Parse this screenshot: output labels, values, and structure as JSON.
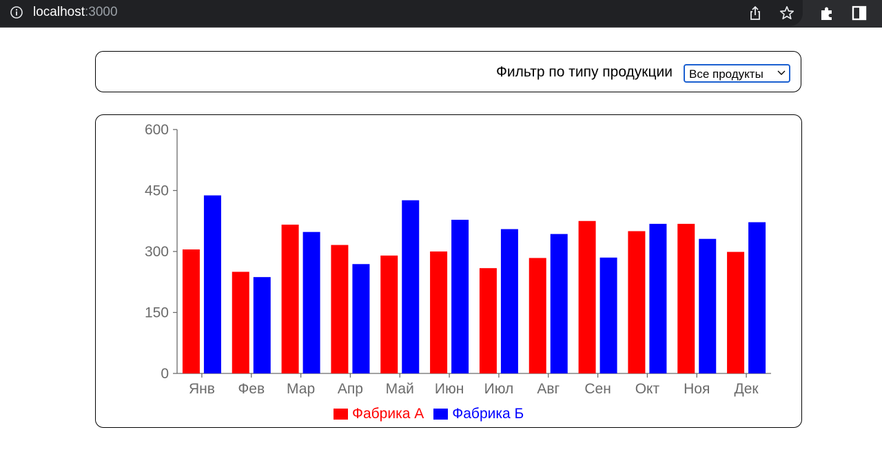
{
  "browser": {
    "url_host": "localhost",
    "url_port": ":3000",
    "icons": [
      "info-icon",
      "share-icon",
      "star-icon",
      "extensions-icon",
      "side-panel-icon"
    ]
  },
  "filter": {
    "label": "Фильтр по типу продукции",
    "selected": "Все продукты"
  },
  "colors": {
    "factory_a": "#ff0000",
    "factory_b": "#0000ff",
    "axis": "#6b6b6b"
  },
  "chart_data": {
    "type": "bar",
    "categories": [
      "Янв",
      "Фев",
      "Мар",
      "Апр",
      "Май",
      "Июн",
      "Июл",
      "Авг",
      "Сен",
      "Окт",
      "Ноя",
      "Дек"
    ],
    "series": [
      {
        "name": "Фабрика А",
        "values": [
          305,
          250,
          366,
          316,
          290,
          300,
          259,
          284,
          375,
          350,
          368,
          299
        ]
      },
      {
        "name": "Фабрика Б",
        "values": [
          438,
          237,
          348,
          269,
          426,
          378,
          355,
          343,
          285,
          368,
          331,
          372
        ]
      }
    ],
    "yticks": [
      0,
      150,
      300,
      450,
      600
    ],
    "ylim": [
      0,
      600
    ],
    "grid": false,
    "legend": "bottom-center"
  }
}
